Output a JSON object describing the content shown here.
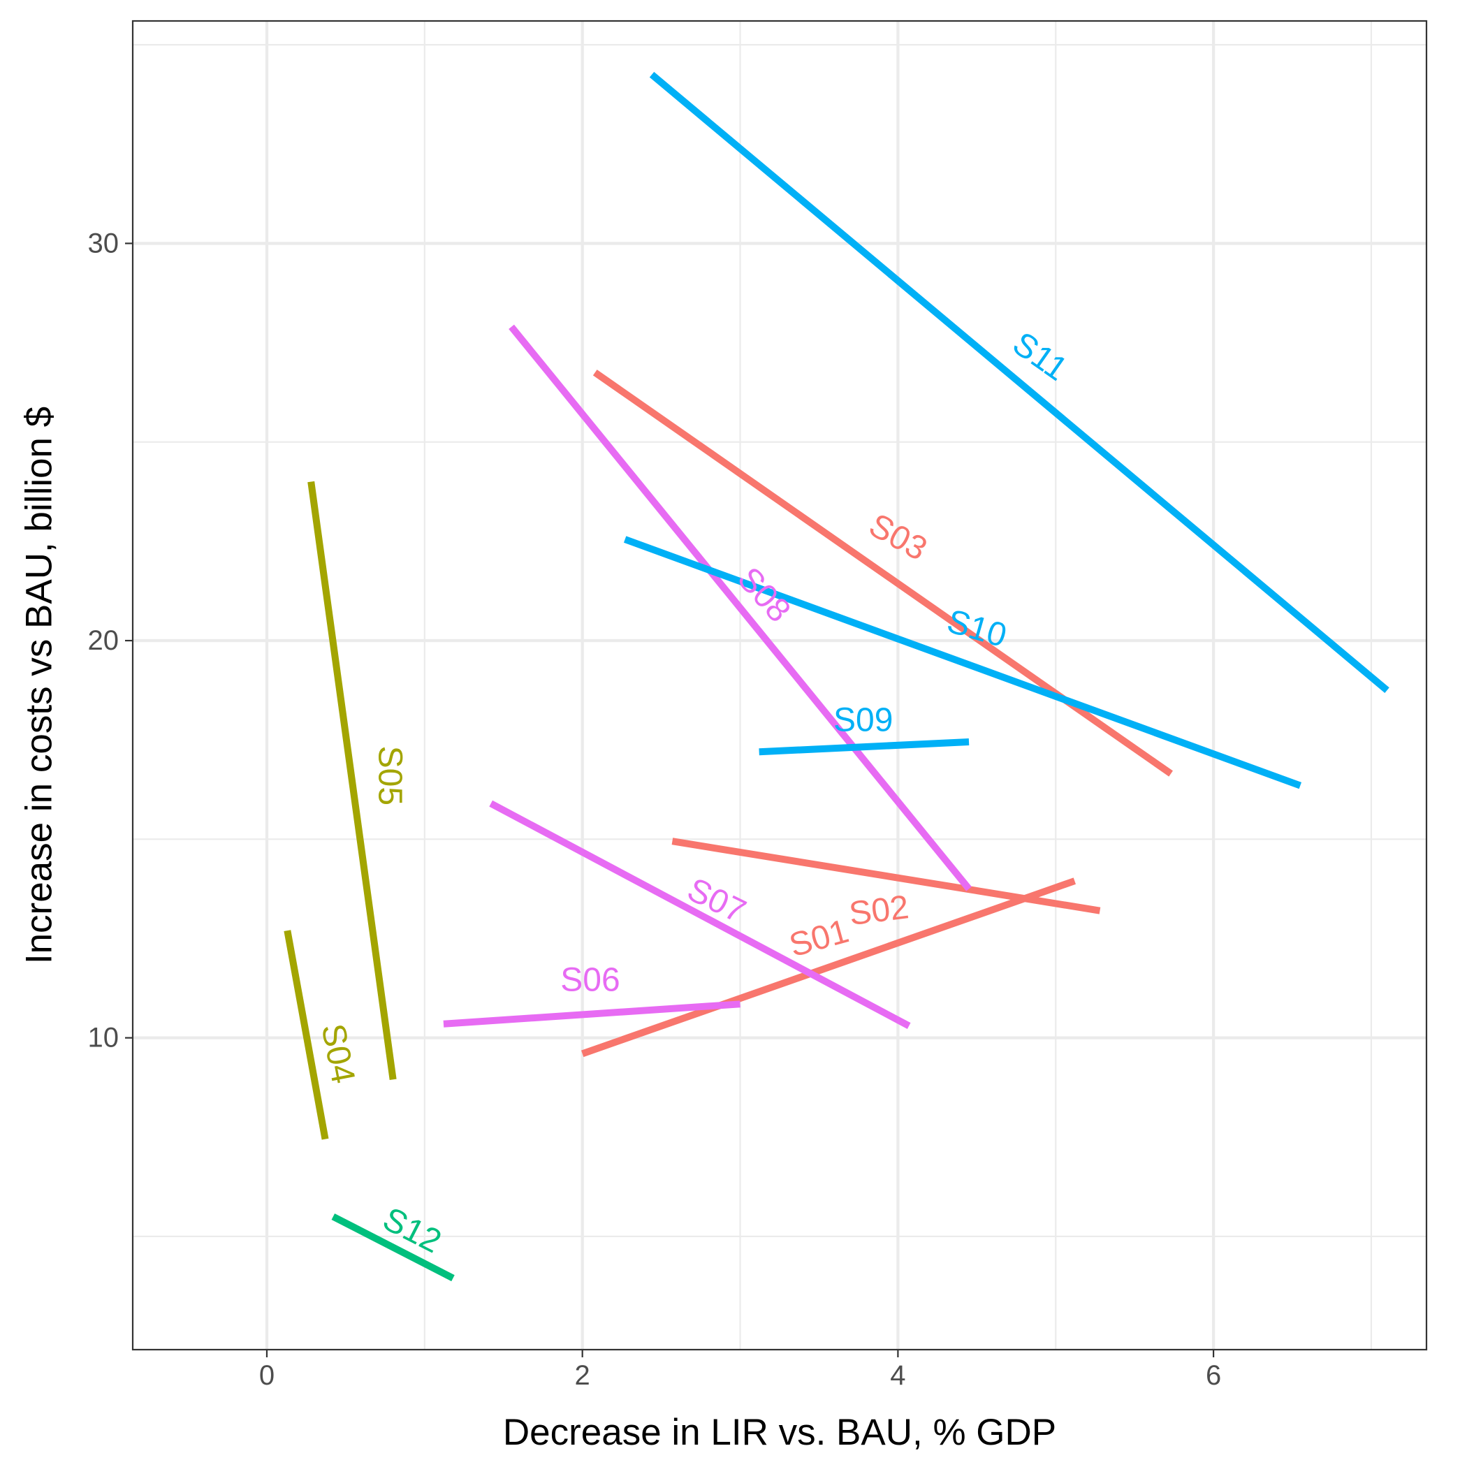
{
  "chart_data": {
    "type": "line",
    "xlabel": "Decrease in LIR vs. BAU, % GDP",
    "ylabel": "Increase in costs vs BAU, billion $",
    "xlim": [
      -0.85,
      7.35
    ],
    "ylim": [
      2.15,
      35.6
    ],
    "x_ticks": [
      0,
      2,
      4,
      6
    ],
    "y_ticks": [
      10,
      20,
      30
    ],
    "grid": true,
    "legend": "none",
    "series": [
      {
        "name": "S01",
        "color": "#F8766D",
        "x": [
          2.0,
          5.12
        ],
        "y": [
          9.6,
          13.95
        ],
        "label": {
          "x": 3.5,
          "y": 12.5,
          "angle": -15.5
        }
      },
      {
        "name": "S02",
        "color": "#F8766D",
        "x": [
          2.57,
          5.28
        ],
        "y": [
          14.95,
          13.2
        ],
        "label": {
          "x": 3.88,
          "y": 13.2,
          "angle": -7
        }
      },
      {
        "name": "S03",
        "color": "#F8766D",
        "x": [
          2.08,
          5.73
        ],
        "y": [
          26.75,
          16.65
        ],
        "label": {
          "x": 4.0,
          "y": 22.6,
          "angle": 29
        }
      },
      {
        "name": "S04",
        "color": "#A3A500",
        "x": [
          0.13,
          0.37
        ],
        "y": [
          12.7,
          7.45
        ],
        "label": {
          "x": 0.45,
          "y": 9.6,
          "angle": 79
        }
      },
      {
        "name": "S05",
        "color": "#A3A500",
        "x": [
          0.28,
          0.8
        ],
        "y": [
          24.0,
          8.95
        ],
        "label": {
          "x": 0.78,
          "y": 16.6,
          "angle": 90
        }
      },
      {
        "name": "S06",
        "color": "#E76BF3",
        "x": [
          1.12,
          3.0
        ],
        "y": [
          10.35,
          10.85
        ],
        "label": {
          "x": 2.05,
          "y": 11.45,
          "angle": 0
        }
      },
      {
        "name": "S07",
        "color": "#E76BF3",
        "x": [
          1.42,
          4.07
        ],
        "y": [
          15.9,
          10.3
        ],
        "label": {
          "x": 2.85,
          "y": 13.45,
          "angle": 26
        }
      },
      {
        "name": "S08",
        "color": "#E76BF3",
        "x": [
          1.55,
          4.45
        ],
        "y": [
          27.9,
          13.75
        ],
        "label": {
          "x": 3.15,
          "y": 21.15,
          "angle": 48
        }
      },
      {
        "name": "S09",
        "color": "#00B0F6",
        "x": [
          3.12,
          4.45
        ],
        "y": [
          17.2,
          17.45
        ],
        "label": {
          "x": 3.78,
          "y": 18.0,
          "angle": 0
        }
      },
      {
        "name": "S10",
        "color": "#00B0F6",
        "x": [
          2.27,
          6.55
        ],
        "y": [
          22.55,
          16.35
        ],
        "label": {
          "x": 4.5,
          "y": 20.3,
          "angle": 16
        }
      },
      {
        "name": "S11",
        "color": "#00B0F6",
        "x": [
          2.44,
          7.1
        ],
        "y": [
          34.25,
          18.75
        ],
        "label": {
          "x": 4.9,
          "y": 27.15,
          "angle": 35
        }
      },
      {
        "name": "S12",
        "color": "#00BF7D",
        "x": [
          0.42,
          1.18
        ],
        "y": [
          5.5,
          3.95
        ],
        "label": {
          "x": 0.92,
          "y": 5.15,
          "angle": 27
        }
      }
    ]
  }
}
